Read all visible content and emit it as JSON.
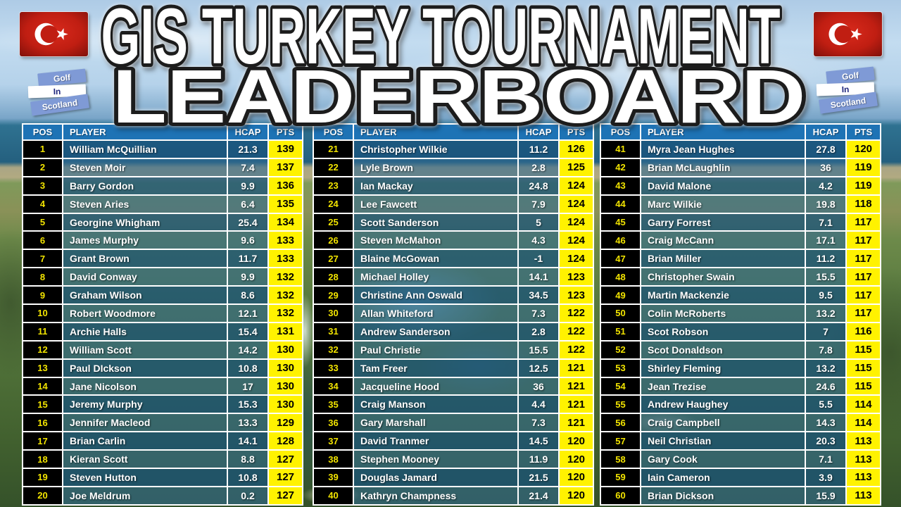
{
  "title": {
    "line1": "GIS TURKEY TOURNAMENT",
    "line2": "LEADERBOARD"
  },
  "logo": {
    "line1": "Golf",
    "line2": "In",
    "line3": "Scotland"
  },
  "colors": {
    "header_blue": "#1E73B5",
    "row_overlay_blue": "#18527C",
    "pos_background": "#000000",
    "pos_number_yellow": "#F2E400",
    "pts_background_yellow": "#FFF200",
    "pts_number": "#000000",
    "logo_blue": "#7F9AD6",
    "flag_red": "#C01E12",
    "title_fill": "#FFFFFF",
    "title_outline": "#1C1C1C"
  },
  "chart_data": {
    "type": "table",
    "title": "GIS Turkey Tournament Leaderboard",
    "columns": [
      "POS",
      "PLAYER",
      "HCAP",
      "PTS"
    ],
    "boards": [
      {
        "rows": [
          {
            "pos": "1",
            "player": "William McQuillian",
            "hcap": "21.3",
            "pts": "139"
          },
          {
            "pos": "2",
            "player": "Steven Moir",
            "hcap": "7.4",
            "pts": "137"
          },
          {
            "pos": "3",
            "player": "Barry Gordon",
            "hcap": "9.9",
            "pts": "136"
          },
          {
            "pos": "4",
            "player": "Steven Aries",
            "hcap": "6.4",
            "pts": "135"
          },
          {
            "pos": "5",
            "player": "Georgine Whigham",
            "hcap": "25.4",
            "pts": "134"
          },
          {
            "pos": "6",
            "player": "James Murphy",
            "hcap": "9.6",
            "pts": "133"
          },
          {
            "pos": "7",
            "player": "Grant Brown",
            "hcap": "11.7",
            "pts": "133"
          },
          {
            "pos": "8",
            "player": "David Conway",
            "hcap": "9.9",
            "pts": "132"
          },
          {
            "pos": "9",
            "player": "Graham Wilson",
            "hcap": "8.6",
            "pts": "132"
          },
          {
            "pos": "10",
            "player": "Robert Woodmore",
            "hcap": "12.1",
            "pts": "132"
          },
          {
            "pos": "11",
            "player": "Archie Halls",
            "hcap": "15.4",
            "pts": "131"
          },
          {
            "pos": "12",
            "player": "William Scott",
            "hcap": "14.2",
            "pts": "130"
          },
          {
            "pos": "13",
            "player": "Paul DIckson",
            "hcap": "10.8",
            "pts": "130"
          },
          {
            "pos": "14",
            "player": "Jane Nicolson",
            "hcap": "17",
            "pts": "130"
          },
          {
            "pos": "15",
            "player": "Jeremy Murphy",
            "hcap": "15.3",
            "pts": "130"
          },
          {
            "pos": "16",
            "player": "Jennifer Macleod",
            "hcap": "13.3",
            "pts": "129"
          },
          {
            "pos": "17",
            "player": "Brian Carlin",
            "hcap": "14.1",
            "pts": "128"
          },
          {
            "pos": "18",
            "player": "Kieran Scott",
            "hcap": "8.8",
            "pts": "127"
          },
          {
            "pos": "19",
            "player": "Steven Hutton",
            "hcap": "10.8",
            "pts": "127"
          },
          {
            "pos": "20",
            "player": "Joe Meldrum",
            "hcap": "0.2",
            "pts": "127"
          }
        ]
      },
      {
        "rows": [
          {
            "pos": "21",
            "player": "Christopher Wilkie",
            "hcap": "11.2",
            "pts": "126"
          },
          {
            "pos": "22",
            "player": "Lyle Brown",
            "hcap": "2.8",
            "pts": "125"
          },
          {
            "pos": "23",
            "player": "Ian Mackay",
            "hcap": "24.8",
            "pts": "124"
          },
          {
            "pos": "24",
            "player": "Lee Fawcett",
            "hcap": "7.9",
            "pts": "124"
          },
          {
            "pos": "25",
            "player": "Scott Sanderson",
            "hcap": "5",
            "pts": "124"
          },
          {
            "pos": "26",
            "player": "Steven McMahon",
            "hcap": "4.3",
            "pts": "124"
          },
          {
            "pos": "27",
            "player": "Blaine McGowan",
            "hcap": "-1",
            "pts": "124"
          },
          {
            "pos": "28",
            "player": "Michael Holley",
            "hcap": "14.1",
            "pts": "123"
          },
          {
            "pos": "29",
            "player": "Christine Ann Oswald",
            "hcap": "34.5",
            "pts": "123"
          },
          {
            "pos": "30",
            "player": "Allan Whiteford",
            "hcap": "7.3",
            "pts": "122"
          },
          {
            "pos": "31",
            "player": "Andrew Sanderson",
            "hcap": "2.8",
            "pts": "122"
          },
          {
            "pos": "32",
            "player": "Paul Christie",
            "hcap": "15.5",
            "pts": "122"
          },
          {
            "pos": "33",
            "player": "Tam Freer",
            "hcap": "12.5",
            "pts": "121"
          },
          {
            "pos": "34",
            "player": "Jacqueline Hood",
            "hcap": "36",
            "pts": "121"
          },
          {
            "pos": "35",
            "player": "Craig Manson",
            "hcap": "4.4",
            "pts": "121"
          },
          {
            "pos": "36",
            "player": "Gary Marshall",
            "hcap": "7.3",
            "pts": "121"
          },
          {
            "pos": "37",
            "player": "David Tranmer",
            "hcap": "14.5",
            "pts": "120"
          },
          {
            "pos": "38",
            "player": "Stephen Mooney",
            "hcap": "11.9",
            "pts": "120"
          },
          {
            "pos": "39",
            "player": "Douglas Jamard",
            "hcap": "21.5",
            "pts": "120"
          },
          {
            "pos": "40",
            "player": "Kathryn Champness",
            "hcap": "21.4",
            "pts": "120"
          }
        ]
      },
      {
        "rows": [
          {
            "pos": "41",
            "player": "Myra Jean Hughes",
            "hcap": "27.8",
            "pts": "120"
          },
          {
            "pos": "42",
            "player": "Brian McLaughlin",
            "hcap": "36",
            "pts": "119"
          },
          {
            "pos": "43",
            "player": "David Malone",
            "hcap": "4.2",
            "pts": "119"
          },
          {
            "pos": "44",
            "player": "Marc Wilkie",
            "hcap": "19.8",
            "pts": "118"
          },
          {
            "pos": "45",
            "player": "Garry Forrest",
            "hcap": "7.1",
            "pts": "117"
          },
          {
            "pos": "46",
            "player": "Craig McCann",
            "hcap": "17.1",
            "pts": "117"
          },
          {
            "pos": "47",
            "player": "Brian Miller",
            "hcap": "11.2",
            "pts": "117"
          },
          {
            "pos": "48",
            "player": "Christopher Swain",
            "hcap": "15.5",
            "pts": "117"
          },
          {
            "pos": "49",
            "player": "Martin Mackenzie",
            "hcap": "9.5",
            "pts": "117"
          },
          {
            "pos": "50",
            "player": "Colin McRoberts",
            "hcap": "13.2",
            "pts": "117"
          },
          {
            "pos": "51",
            "player": "Scot Robson",
            "hcap": "7",
            "pts": "116"
          },
          {
            "pos": "52",
            "player": "Scot Donaldson",
            "hcap": "7.8",
            "pts": "115"
          },
          {
            "pos": "53",
            "player": "Shirley Fleming",
            "hcap": "13.2",
            "pts": "115"
          },
          {
            "pos": "54",
            "player": "Jean Trezise",
            "hcap": "24.6",
            "pts": "115"
          },
          {
            "pos": "55",
            "player": "Andrew Haughey",
            "hcap": "5.5",
            "pts": "114"
          },
          {
            "pos": "56",
            "player": "Craig Campbell",
            "hcap": "14.3",
            "pts": "114"
          },
          {
            "pos": "57",
            "player": "Neil Christian",
            "hcap": "20.3",
            "pts": "113"
          },
          {
            "pos": "58",
            "player": "Gary Cook",
            "hcap": "7.1",
            "pts": "113"
          },
          {
            "pos": "59",
            "player": "Iain Cameron",
            "hcap": "3.9",
            "pts": "113"
          },
          {
            "pos": "60",
            "player": "Brian Dickson",
            "hcap": "15.9",
            "pts": "113"
          }
        ]
      }
    ]
  }
}
